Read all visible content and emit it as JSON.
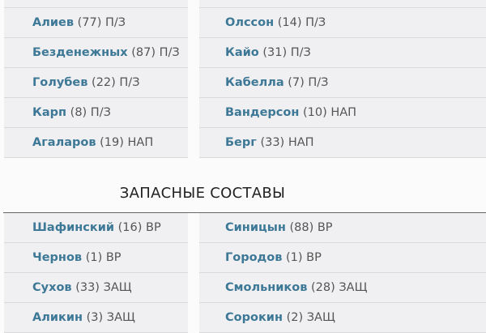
{
  "starting": {
    "left": [
      {
        "name": "Алиев",
        "meta": "(77) П/З"
      },
      {
        "name": "Безденежных",
        "meta": "(87) П/З"
      },
      {
        "name": "Голубев",
        "meta": "(22) П/З"
      },
      {
        "name": "Карп",
        "meta": "(8) П/З"
      },
      {
        "name": "Агаларов",
        "meta": "(19) НАП"
      }
    ],
    "right": [
      {
        "name": "Олссон",
        "meta": "(14) П/З"
      },
      {
        "name": "Кайо",
        "meta": "(31) П/З"
      },
      {
        "name": "Кабелла",
        "meta": "(7) П/З"
      },
      {
        "name": "Вандерсон",
        "meta": "(10) НАП"
      },
      {
        "name": "Берг",
        "meta": "(33) НАП"
      }
    ]
  },
  "reserves": {
    "title": "ЗАПАСНЫЕ СОСТАВЫ",
    "left": [
      {
        "name": "Шафинский",
        "meta": "(16) ВР"
      },
      {
        "name": "Чернов",
        "meta": "(1) ВР"
      },
      {
        "name": "Сухов",
        "meta": "(33) ЗАЩ"
      },
      {
        "name": "Аликин",
        "meta": "(3) ЗАЩ"
      }
    ],
    "right": [
      {
        "name": "Синицын",
        "meta": "(88) ВР"
      },
      {
        "name": "Городов",
        "meta": "(1) ВР"
      },
      {
        "name": "Смольников",
        "meta": "(28) ЗАЩ"
      },
      {
        "name": "Сорокин",
        "meta": "(2) ЗАЩ"
      }
    ]
  },
  "colors": {
    "name": "#3d7896",
    "row_bg": "#f0f0f2"
  }
}
